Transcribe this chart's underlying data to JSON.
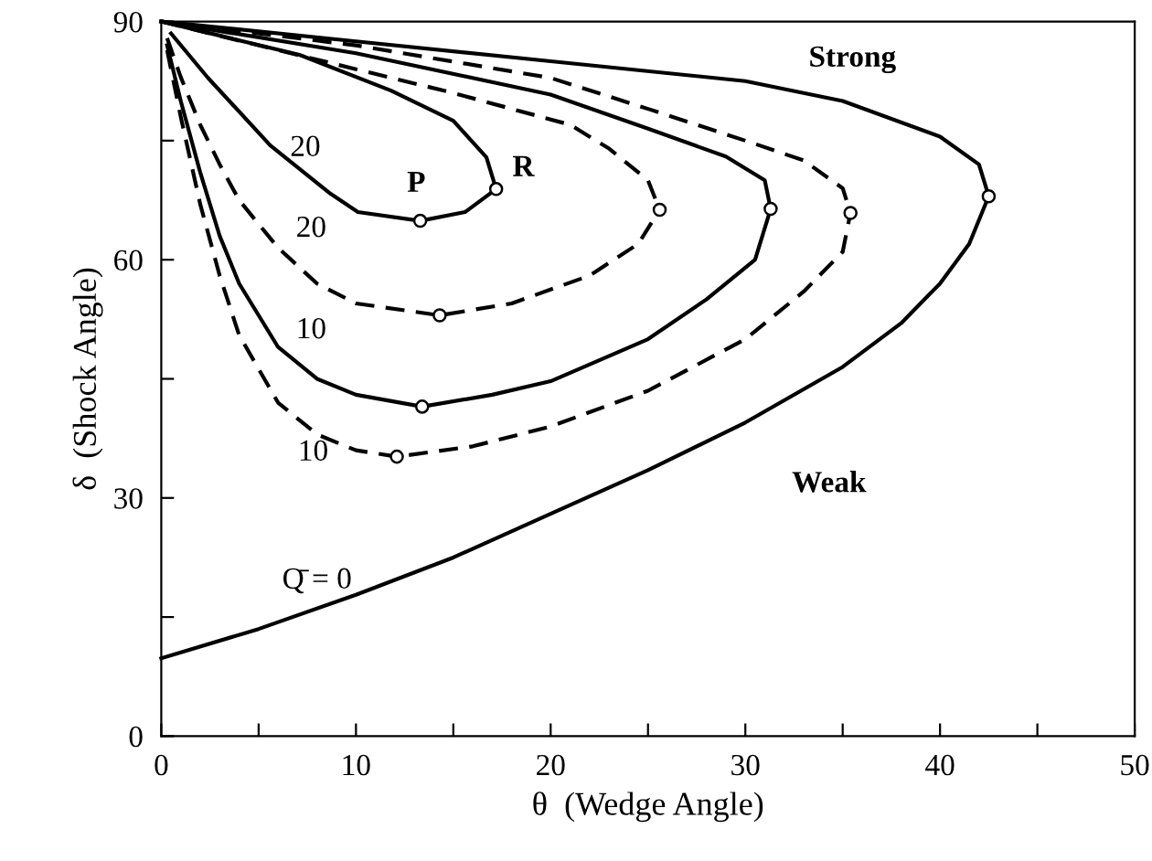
{
  "chart_data": {
    "type": "line",
    "xlabel": "θ  (Wedge Angle)",
    "ylabel": "δ  (Shock Angle)",
    "xlim": [
      0,
      50
    ],
    "ylim": [
      0,
      90
    ],
    "xticks": [
      0,
      {
        "value": 5,
        "label": null
      },
      10,
      {
        "value": 15,
        "label": null
      },
      20,
      {
        "value": 25,
        "label": null
      },
      30,
      {
        "value": 35,
        "label": null
      },
      40,
      {
        "value": 45,
        "label": null
      },
      50
    ],
    "yticks": [
      0,
      {
        "value": 15,
        "label": null
      },
      30,
      {
        "value": 45,
        "label": null
      },
      60,
      {
        "value": 75,
        "label": null
      },
      90
    ],
    "grid": false,
    "legend": false,
    "series": [
      {
        "color": "#000000",
        "line_style": "solid",
        "marker": "none",
        "x": [
          0,
          5,
          10,
          15,
          20,
          25,
          30,
          35,
          38,
          40,
          41.5,
          42.5
        ],
        "values": [
          9.8,
          13.5,
          17.8,
          22.5,
          28,
          33.5,
          39.5,
          46.5,
          52,
          57,
          62,
          68
        ]
      },
      {
        "color": "#000000",
        "line_style": "solid",
        "marker": "none",
        "x": [
          0,
          10,
          20,
          30,
          35,
          40,
          42,
          42.5
        ],
        "values": [
          90,
          87.5,
          85,
          82.5,
          80,
          75.5,
          72,
          68
        ]
      },
      {
        "color": "#000000",
        "line_style": "dashed",
        "marker": "none",
        "x": [
          0.3,
          1,
          2,
          3,
          4,
          6,
          8,
          10,
          12.1,
          16,
          20,
          25,
          30,
          33,
          35,
          35.4
        ],
        "values": [
          86.4,
          78,
          67,
          58,
          50.5,
          42,
          38,
          36,
          35.2,
          36.5,
          39,
          43.5,
          50,
          56,
          61,
          65.9
        ]
      },
      {
        "color": "#000000",
        "line_style": "dashed",
        "marker": "none",
        "x": [
          0,
          10,
          20,
          25,
          30,
          33,
          35,
          35.4
        ],
        "values": [
          90,
          87,
          82.9,
          79,
          75,
          72.5,
          69,
          65.9
        ]
      },
      {
        "color": "#000000",
        "line_style": "solid",
        "marker": "none",
        "x": [
          0.3,
          1,
          2,
          3,
          4,
          6,
          8,
          10,
          13.4,
          17,
          20,
          25,
          28,
          30.5,
          31.3
        ],
        "values": [
          87,
          80,
          71,
          63,
          57,
          49,
          45,
          43,
          41.5,
          43,
          44.7,
          50,
          55,
          60,
          66.4
        ]
      },
      {
        "color": "#000000",
        "line_style": "solid",
        "marker": "none",
        "x": [
          0,
          10,
          20,
          25,
          29,
          31,
          31.3
        ],
        "values": [
          90,
          86,
          80.8,
          76.5,
          73,
          70,
          66.4
        ]
      },
      {
        "color": "#000000",
        "line_style": "dashed",
        "marker": "none",
        "x": [
          0.3,
          1,
          2,
          3,
          4,
          6,
          8,
          10,
          14.3,
          18,
          22,
          24.5,
          25.6
        ],
        "values": [
          87.9,
          83,
          77,
          72,
          67.5,
          61.5,
          57,
          54.5,
          53,
          54.5,
          58,
          62,
          66.3
        ]
      },
      {
        "color": "#000000",
        "line_style": "dashed",
        "marker": "none",
        "x": [
          0,
          10,
          15,
          21,
          23,
          25,
          25.6
        ],
        "values": [
          90,
          84,
          81,
          77,
          74,
          70,
          66.3
        ]
      },
      {
        "color": "#000000",
        "line_style": "solid",
        "marker": "none",
        "x": [
          0.5,
          2.4,
          5.6,
          8.7,
          10.1,
          13.3,
          15.6,
          17.2
        ],
        "values": [
          88.5,
          82.9,
          74.4,
          68.3,
          66,
          64.9,
          66,
          68.9
        ]
      },
      {
        "color": "#000000",
        "line_style": "solid",
        "marker": "none",
        "x": [
          0,
          7.1,
          11.8,
          15,
          16.7,
          17.2
        ],
        "values": [
          90,
          85.8,
          81.3,
          77.5,
          72.9,
          68.9
        ]
      },
      {
        "type": "scatter",
        "color": "#000000",
        "marker": "circle",
        "x": [
          42.5,
          35.4,
          31.3,
          25.6,
          13.4,
          12.1,
          14.3,
          13.3,
          17.2
        ],
        "values": [
          68,
          65.9,
          66.4,
          66.3,
          41.5,
          35.2,
          53,
          64.9,
          68.9
        ]
      }
    ],
    "annotations": [
      "20",
      "P",
      "R",
      "20",
      "10",
      "10",
      "Q̄ = 0",
      "Strong",
      "Weak"
    ]
  }
}
